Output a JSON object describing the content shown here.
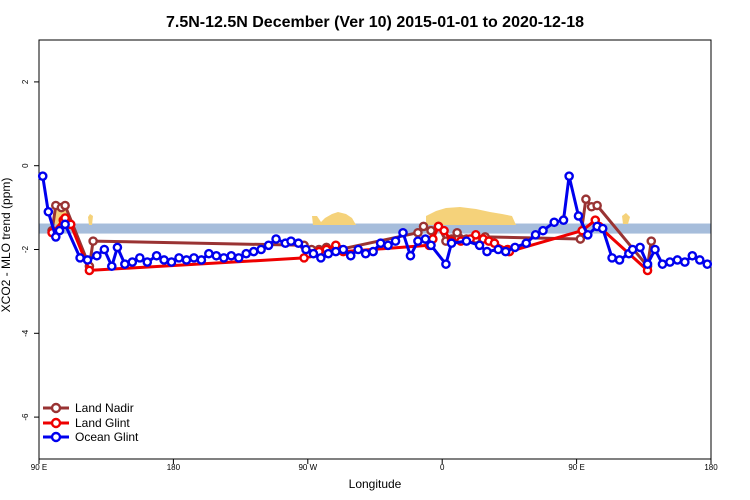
{
  "chart_data": {
    "type": "line",
    "title": "7.5N-12.5N December (Ver 10)   2015-01-01 to 2020-12-18",
    "xlabel": "Longitude",
    "ylabel": "XCO2 - MLO trend (ppm)",
    "xlim": [
      90,
      450
    ],
    "ylim": [
      -7,
      3
    ],
    "x_ticks": [
      {
        "value": 90,
        "label": "90 E"
      },
      {
        "value": 162,
        "label": "180"
      },
      {
        "value": 234,
        "label": "90 W"
      },
      {
        "value": 306,
        "label": "0"
      },
      {
        "value": 378,
        "label": "90 E"
      },
      {
        "value": 450,
        "label": "180"
      }
    ],
    "y_ticks": [
      -6,
      -4,
      -2,
      0,
      2
    ],
    "grid": false,
    "legend_position": "bottom-left",
    "reference_band": {
      "ymin": -1.62,
      "ymax": -1.38,
      "color": "#a6bddb"
    },
    "land_mask_color": "#f5d27a",
    "series": [
      {
        "name": "Land Nadir",
        "color": "#993333",
        "x": [
          97,
          99,
          102,
          104,
          117,
          119,
          232,
          236,
          240,
          244,
          251,
          293,
          296,
          300,
          304,
          308,
          311,
          314,
          319,
          324,
          329,
          380,
          383,
          386,
          389,
          416,
          418
        ],
        "y": [
          -1.55,
          -0.95,
          -1.0,
          -0.95,
          -2.4,
          -1.8,
          -1.9,
          -2.0,
          -2.0,
          -1.95,
          -2.0,
          -1.6,
          -1.45,
          -1.55,
          -1.45,
          -1.8,
          -1.75,
          -1.6,
          -1.75,
          -1.75,
          -1.7,
          -1.75,
          -0.8,
          -0.98,
          -0.95,
          -2.4,
          -1.8
        ]
      },
      {
        "name": "Land Glint",
        "color": "#ee0000",
        "x": [
          97,
          103,
          104,
          107,
          117,
          232,
          235,
          240,
          244,
          249,
          253,
          299,
          301,
          304,
          307,
          311,
          316,
          321,
          324,
          328,
          331,
          334,
          341,
          342,
          381,
          388,
          390,
          416
        ],
        "y": [
          -1.6,
          -1.3,
          -1.25,
          -1.4,
          -2.5,
          -2.2,
          -2.1,
          -2.05,
          -2.0,
          -1.9,
          -2.05,
          -1.9,
          -1.75,
          -1.45,
          -1.55,
          -1.8,
          -1.8,
          -1.75,
          -1.65,
          -1.75,
          -1.8,
          -1.85,
          -2.0,
          -2.05,
          -1.55,
          -1.3,
          -1.45,
          -2.5
        ]
      },
      {
        "name": "Ocean Glint",
        "color": "#0000ee",
        "x": [
          92,
          95,
          99,
          101,
          104,
          112,
          116,
          121,
          125,
          129,
          132,
          136,
          140,
          144,
          148,
          153,
          157,
          161,
          165,
          169,
          173,
          177,
          181,
          185,
          189,
          193,
          197,
          201,
          205,
          209,
          213,
          217,
          222,
          225,
          229,
          233,
          237,
          241,
          245,
          249,
          253,
          257,
          261,
          265,
          269,
          273,
          277,
          281,
          285,
          289,
          293,
          297,
          300,
          308,
          311,
          319,
          326,
          330,
          336,
          340,
          345,
          351,
          356,
          360,
          366,
          371,
          374,
          379,
          384,
          389,
          392,
          397,
          401,
          406,
          408,
          412,
          416,
          420,
          424,
          428,
          432,
          436,
          440,
          444,
          448
        ],
        "y": [
          -0.25,
          -1.1,
          -1.7,
          -1.55,
          -1.4,
          -2.2,
          -2.25,
          -2.15,
          -2.0,
          -2.4,
          -1.95,
          -2.35,
          -2.3,
          -2.2,
          -2.3,
          -2.15,
          -2.25,
          -2.3,
          -2.2,
          -2.25,
          -2.2,
          -2.25,
          -2.1,
          -2.15,
          -2.2,
          -2.15,
          -2.2,
          -2.1,
          -2.05,
          -2.0,
          -1.9,
          -1.75,
          -1.85,
          -1.8,
          -1.85,
          -2.0,
          -2.1,
          -2.2,
          -2.1,
          -2.05,
          -2.0,
          -2.15,
          -2.0,
          -2.1,
          -2.05,
          -1.85,
          -1.9,
          -1.8,
          -1.6,
          -2.15,
          -1.8,
          -1.75,
          -1.9,
          -2.35,
          -1.85,
          -1.8,
          -1.9,
          -2.05,
          -2.0,
          -2.05,
          -1.95,
          -1.85,
          -1.65,
          -1.55,
          -1.35,
          -1.3,
          -0.25,
          -1.2,
          -1.65,
          -1.45,
          -1.5,
          -2.2,
          -2.25,
          -2.1,
          -2.0,
          -1.95,
          -2.35,
          -2.0,
          -2.35,
          -2.3,
          -2.25,
          -2.3,
          -2.15,
          -2.25,
          -2.35
        ]
      }
    ]
  }
}
